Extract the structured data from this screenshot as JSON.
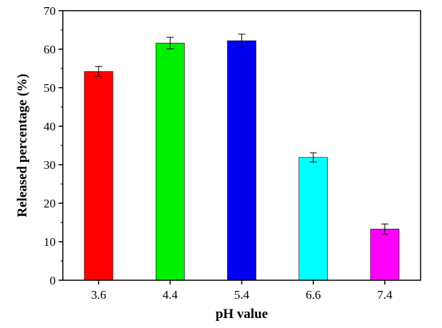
{
  "chart_data": {
    "type": "bar",
    "title": "",
    "xlabel": "pH value",
    "ylabel": "Released percentage (%)",
    "categories": [
      "3.6",
      "4.4",
      "5.4",
      "6.6",
      "7.4"
    ],
    "values": [
      54.2,
      61.6,
      62.2,
      31.9,
      13.3
    ],
    "errors": [
      1.3,
      1.5,
      1.7,
      1.2,
      1.3
    ],
    "colors": [
      "#ff0000",
      "#00ee00",
      "#0000ee",
      "#00ffff",
      "#ff00ff"
    ],
    "ylim": [
      0,
      70
    ],
    "yticks": [
      "0",
      "10",
      "20",
      "30",
      "40",
      "50",
      "60",
      "70"
    ],
    "grid": false,
    "legend": "none"
  }
}
